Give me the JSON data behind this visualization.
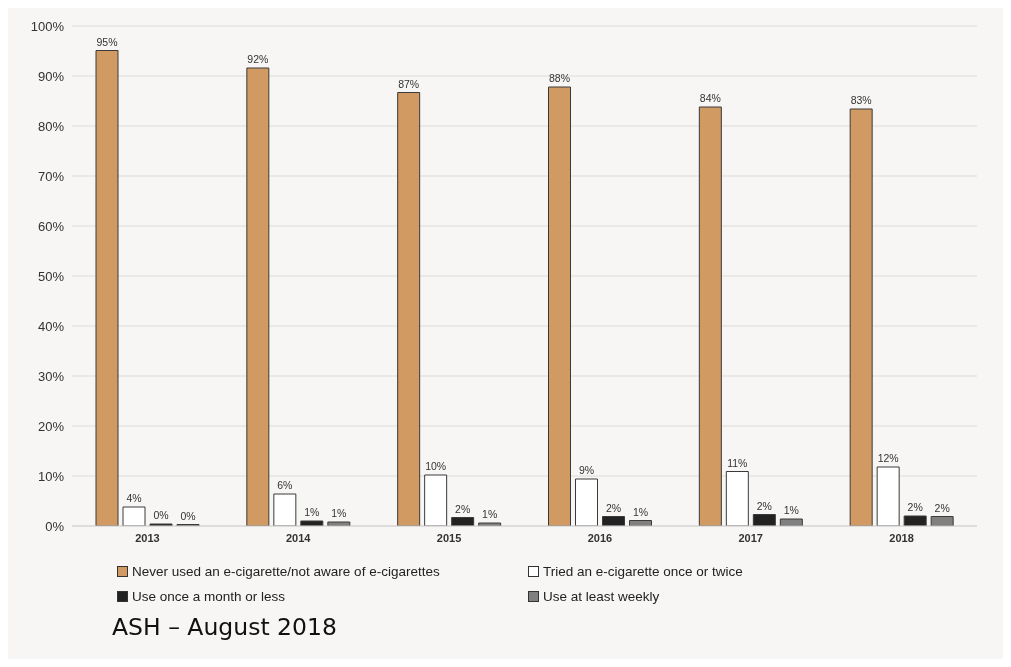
{
  "chart_data": {
    "type": "bar",
    "categories": [
      "2013",
      "2014",
      "2015",
      "2016",
      "2017",
      "2018"
    ],
    "series": [
      {
        "name": "Never used an e-cigarette/not aware of e-cigarettes",
        "color": "#d09a62",
        "values": [
          95.1,
          91.6,
          86.7,
          87.8,
          83.8,
          83.4
        ],
        "value_labels": [
          "95%",
          "92%",
          "87%",
          "88%",
          "84%",
          "83%"
        ]
      },
      {
        "name": "Tried an e-cigarette once or twice",
        "color": "#ffffff",
        "values": [
          3.8,
          6.4,
          10.2,
          9.4,
          10.9,
          11.8
        ],
        "value_labels": [
          "4%",
          "6%",
          "10%",
          "9%",
          "11%",
          "12%"
        ]
      },
      {
        "name": "Use once a month or less",
        "color": "#222222",
        "values": [
          0.4,
          1.0,
          1.7,
          1.9,
          2.3,
          2.0
        ],
        "value_labels": [
          "0%",
          "1%",
          "2%",
          "2%",
          "2%",
          "2%"
        ]
      },
      {
        "name": "Use at least weekly",
        "color": "#808080",
        "values": [
          0.3,
          0.8,
          0.6,
          1.1,
          1.4,
          1.9
        ],
        "value_labels": [
          "0%",
          "1%",
          "1%",
          "1%",
          "1%",
          "2%"
        ]
      }
    ],
    "ylim": [
      0,
      100
    ],
    "yticks": [
      {
        "value": 0,
        "label": "0%"
      },
      {
        "value": 10,
        "label": "10%"
      },
      {
        "value": 20,
        "label": "20%"
      },
      {
        "value": 30,
        "label": "30%"
      },
      {
        "value": 40,
        "label": "40%"
      },
      {
        "value": 50,
        "label": "50%"
      },
      {
        "value": 60,
        "label": "60%"
      },
      {
        "value": 70,
        "label": "70%"
      },
      {
        "value": 80,
        "label": "80%"
      },
      {
        "value": 90,
        "label": "90%"
      },
      {
        "value": 100,
        "label": "100%"
      }
    ],
    "grid": "y",
    "legend": "bottom",
    "annotations": [
      "ASH – August 2018"
    ]
  }
}
